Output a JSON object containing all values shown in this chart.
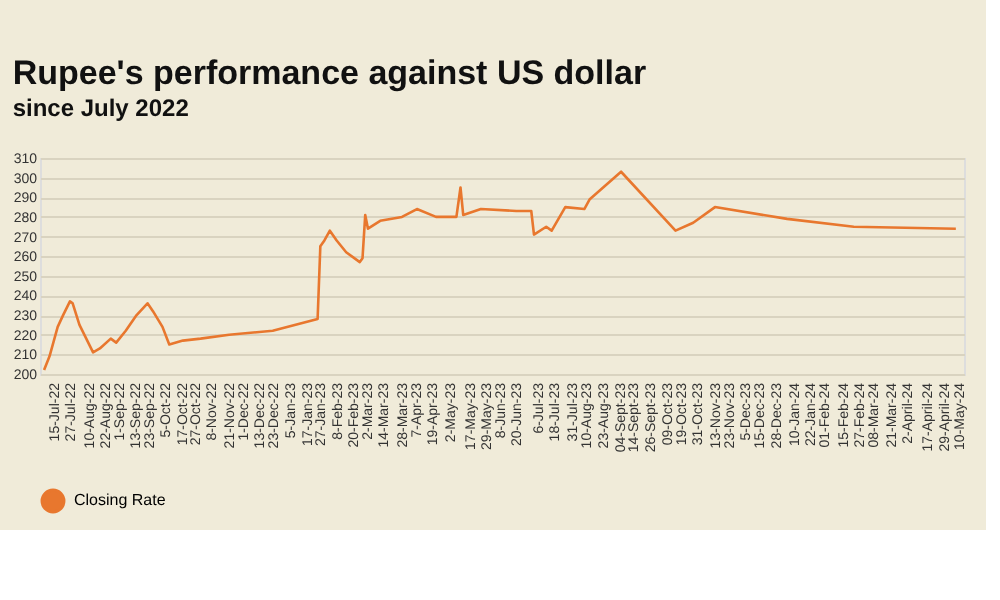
{
  "chart_data": {
    "type": "line",
    "title": "Rupee's performance against US dollar",
    "subtitle": "since July 2022",
    "x": [
      "2022-07-08",
      "2022-07-12",
      "2022-07-18",
      "2022-07-22",
      "2022-07-27",
      "2022-07-29",
      "2022-08-03",
      "2022-08-13",
      "2022-08-18",
      "2022-08-26",
      "2022-08-30",
      "2022-09-06",
      "2022-09-14",
      "2022-09-22",
      "2022-09-26",
      "2022-10-03",
      "2022-10-08",
      "2022-10-18",
      "2022-10-31",
      "2022-11-21",
      "2022-12-23",
      "2023-01-25",
      "2023-01-27",
      "2023-01-30",
      "2023-02-03",
      "2023-02-08",
      "2023-02-15",
      "2023-02-25",
      "2023-02-27",
      "2023-03-01",
      "2023-03-03",
      "2023-03-12",
      "2023-03-28",
      "2023-04-08",
      "2023-04-22",
      "2023-05-07",
      "2023-05-10",
      "2023-05-12",
      "2023-05-25",
      "2023-06-20",
      "2023-07-01",
      "2023-07-03",
      "2023-07-12",
      "2023-07-16",
      "2023-07-26",
      "2023-08-09",
      "2023-08-13",
      "2023-09-05",
      "2023-10-15",
      "2023-10-28",
      "2023-11-13",
      "2024-01-05",
      "2024-02-23",
      "2024-05-08"
    ],
    "series": [
      {
        "name": "Closing Rate",
        "color": "#e8772e",
        "values": [
          202,
          209,
          224,
          230,
          237,
          236,
          225,
          211,
          213,
          218,
          216,
          222,
          230,
          236,
          232,
          224,
          215,
          217,
          218,
          220,
          222,
          228,
          265,
          268,
          273,
          268,
          262,
          257,
          259,
          281,
          274,
          278,
          280,
          284,
          280,
          280,
          295,
          281,
          284,
          283,
          283,
          271,
          275,
          273,
          285,
          284,
          289,
          303,
          273,
          277,
          285,
          279,
          275,
          274
        ]
      }
    ],
    "ylim": [
      200,
      310
    ],
    "yticks": [
      200,
      210,
      220,
      230,
      240,
      250,
      260,
      270,
      280,
      290,
      300,
      310
    ],
    "xlim": [
      "2022-07-05",
      "2024-05-14"
    ],
    "xticks": [
      {
        "value": "2022-07-15",
        "label": "15-Jul-22"
      },
      {
        "value": "2022-07-27",
        "label": "27-Jul-22"
      },
      {
        "value": "2022-08-10",
        "label": "10-Aug-22"
      },
      {
        "value": "2022-08-22",
        "label": "22-Aug-22"
      },
      {
        "value": "2022-09-01",
        "label": "1-Sep-22"
      },
      {
        "value": "2022-09-13",
        "label": "13-Sep-22"
      },
      {
        "value": "2022-09-23",
        "label": "23-Sep-22"
      },
      {
        "value": "2022-10-05",
        "label": "5-Oct-22"
      },
      {
        "value": "2022-10-17",
        "label": "17-Oct-22"
      },
      {
        "value": "2022-10-27",
        "label": "27-Oct-22"
      },
      {
        "value": "2022-11-08",
        "label": "8-Nov-22"
      },
      {
        "value": "2022-11-21",
        "label": "21-Nov-22"
      },
      {
        "value": "2022-12-01",
        "label": "1-Dec-22"
      },
      {
        "value": "2022-12-13",
        "label": "13-Dec-22"
      },
      {
        "value": "2022-12-23",
        "label": "23-Dec-22"
      },
      {
        "value": "2023-01-05",
        "label": "5-Jan-23"
      },
      {
        "value": "2023-01-17",
        "label": "17-Jan-23"
      },
      {
        "value": "2023-01-27",
        "label": "27-Jan-23"
      },
      {
        "value": "2023-02-08",
        "label": "8-Feb-23"
      },
      {
        "value": "2023-02-20",
        "label": "20-Feb-23"
      },
      {
        "value": "2023-03-02",
        "label": "2-Mar-23"
      },
      {
        "value": "2023-03-14",
        "label": "14-Mar-23"
      },
      {
        "value": "2023-03-28",
        "label": "28-Mar-23"
      },
      {
        "value": "2023-04-07",
        "label": "7-Apr-23"
      },
      {
        "value": "2023-04-19",
        "label": "19-Apr-23"
      },
      {
        "value": "2023-05-02",
        "label": "2-May-23"
      },
      {
        "value": "2023-05-17",
        "label": "17-May-23"
      },
      {
        "value": "2023-05-29",
        "label": "29-May-23"
      },
      {
        "value": "2023-06-08",
        "label": "8-Jun-23"
      },
      {
        "value": "2023-06-20",
        "label": "20-Jun-23"
      },
      {
        "value": "2023-07-06",
        "label": "6-Jul-23"
      },
      {
        "value": "2023-07-18",
        "label": "18-Jul-23"
      },
      {
        "value": "2023-07-31",
        "label": "31-Jul-23"
      },
      {
        "value": "2023-08-10",
        "label": "10-Aug-23"
      },
      {
        "value": "2023-08-23",
        "label": "23-Aug-23"
      },
      {
        "value": "2023-09-04",
        "label": "04-Sept-23"
      },
      {
        "value": "2023-09-14",
        "label": "14-Sept-23"
      },
      {
        "value": "2023-09-26",
        "label": "26-Sept-23"
      },
      {
        "value": "2023-10-09",
        "label": "09-Oct-23"
      },
      {
        "value": "2023-10-19",
        "label": "19-Oct-23"
      },
      {
        "value": "2023-10-31",
        "label": "31-Oct-23"
      },
      {
        "value": "2023-11-13",
        "label": "13-Nov-23"
      },
      {
        "value": "2023-11-23",
        "label": "23-Nov-23"
      },
      {
        "value": "2023-12-05",
        "label": "5-Dec-23"
      },
      {
        "value": "2023-12-15",
        "label": "15-Dec-23"
      },
      {
        "value": "2023-12-28",
        "label": "28-Dec-23"
      },
      {
        "value": "2024-01-10",
        "label": "10-Jan-24"
      },
      {
        "value": "2024-01-22",
        "label": "22-Jan-24"
      },
      {
        "value": "2024-02-01",
        "label": "01-Feb-24"
      },
      {
        "value": "2024-02-15",
        "label": "15-Feb-24"
      },
      {
        "value": "2024-02-27",
        "label": "27-Feb-24"
      },
      {
        "value": "2024-03-08",
        "label": "08-Mar-24"
      },
      {
        "value": "2024-03-21",
        "label": "21-Mar-24"
      },
      {
        "value": "2024-04-02",
        "label": "2-April-24"
      },
      {
        "value": "2024-04-17",
        "label": "17-April-24"
      },
      {
        "value": "2024-04-29",
        "label": "29-April-24"
      },
      {
        "value": "2024-05-10",
        "label": "10-May-24"
      }
    ],
    "grid": "y",
    "legend": "bottom",
    "line_style": "solid"
  }
}
